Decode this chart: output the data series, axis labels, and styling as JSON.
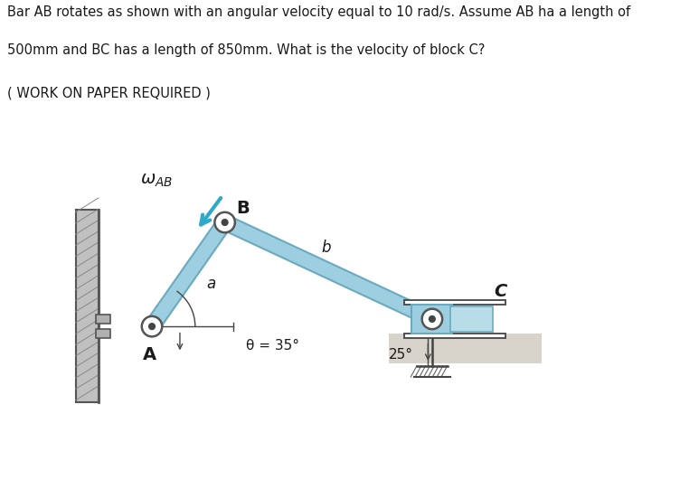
{
  "title_line1": "Bar AB rotates as shown with an angular velocity equal to 10 rad/s. Assume AB ha a length of",
  "title_line2": "500mm and BC has a length of 850mm. What is the velocity of block C?",
  "subtitle": "( WORK ON PAPER REQUIRED )",
  "bar_color": "#9DCFE0",
  "bar_color2": "#B8DDE8",
  "bar_edge_color": "#6AAABF",
  "bg_color": "#ffffff",
  "text_color": "#1a1a1a",
  "wall_color": "#c0c0c0",
  "wall_edge": "#555555",
  "ground_color": "#d0cfc8",
  "pin_color": "#ffffff",
  "pin_dot": "#444444",
  "arrow_color": "#2EAAC8",
  "angle_line_color": "#444444",
  "label_A": "A",
  "label_B": "B",
  "label_C": "C",
  "label_a": "a",
  "label_b": "b",
  "label_theta": "θ = 35°",
  "label_25": "25°",
  "figsize": [
    7.52,
    5.41
  ],
  "dpi": 100,
  "theta_AB": 55,
  "theta_BC": -25
}
